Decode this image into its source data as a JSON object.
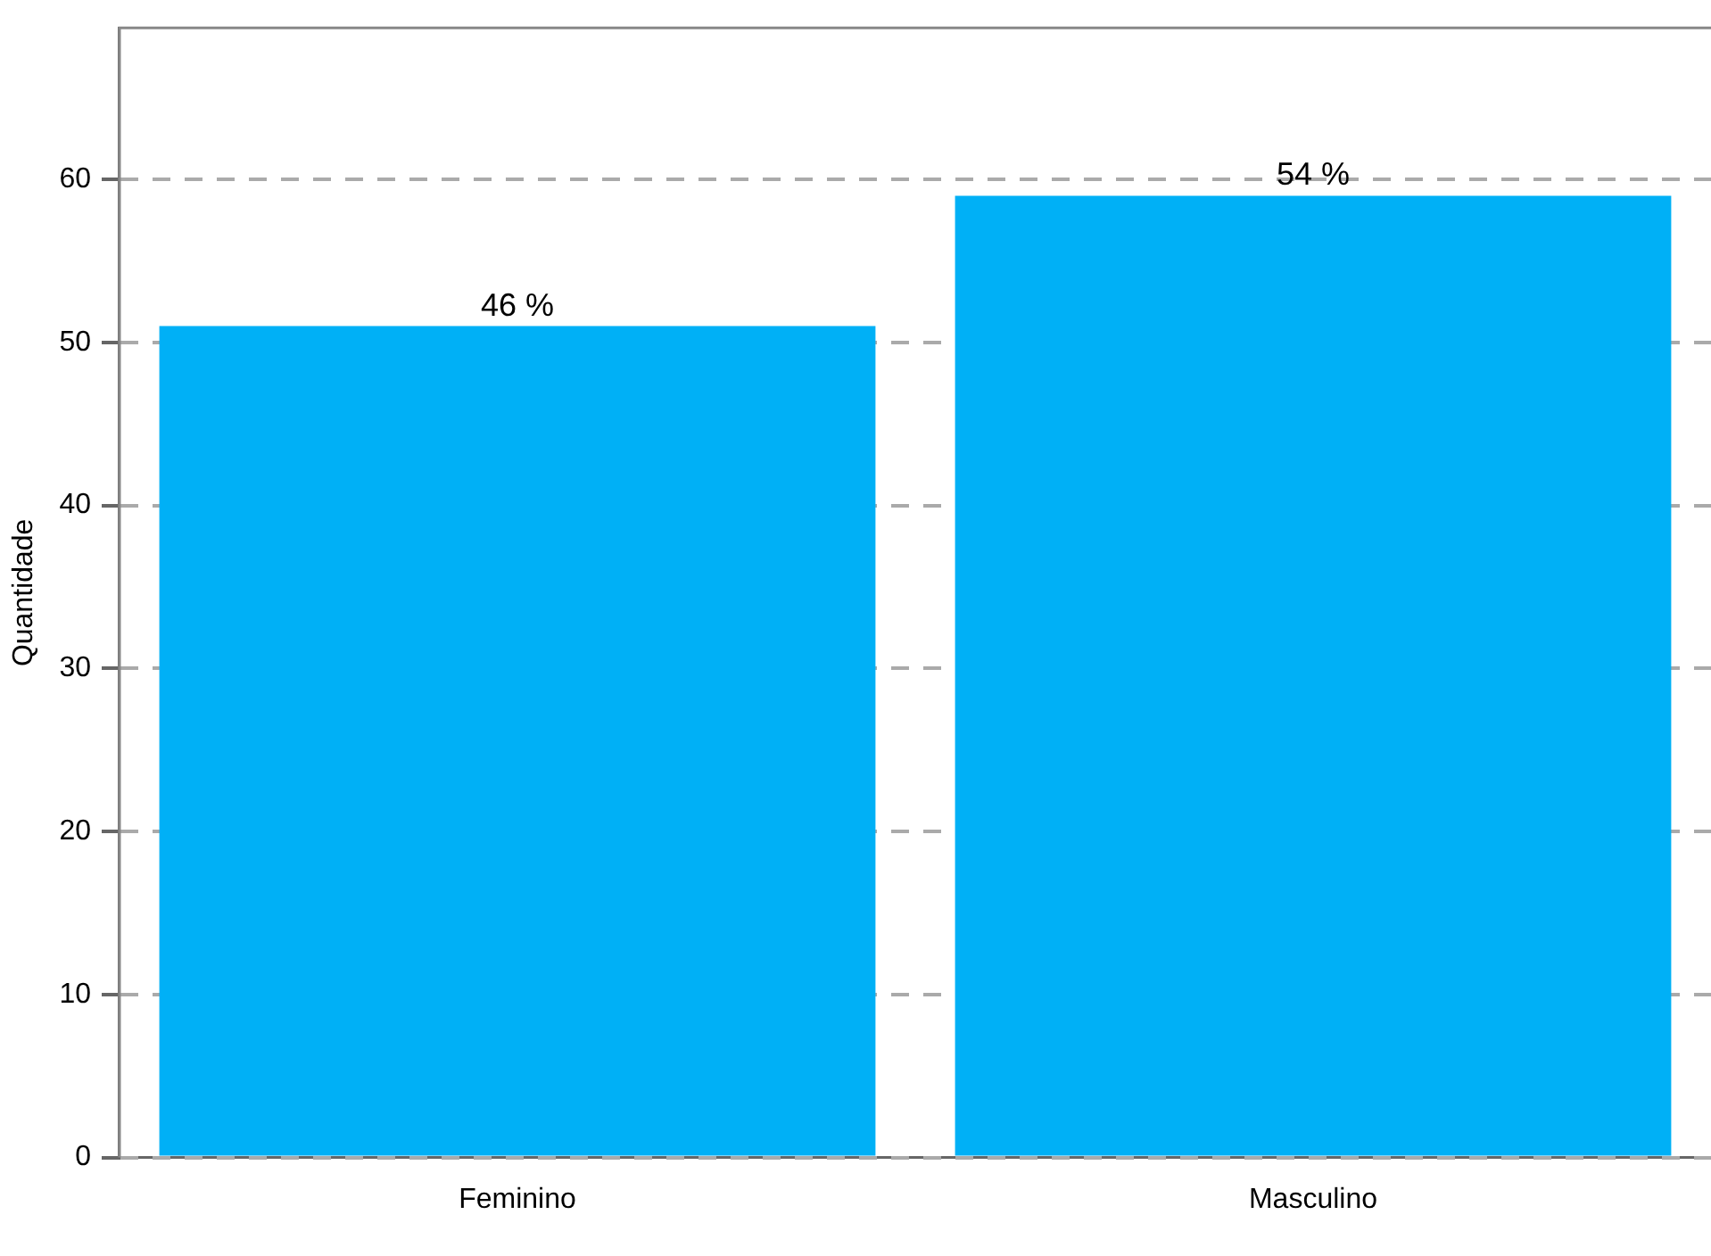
{
  "chart_data": {
    "type": "bar",
    "ylabel": "Quantidade",
    "categories": [
      "Feminino",
      "Masculino"
    ],
    "values": [
      51,
      59
    ],
    "color": "#00b0f6",
    "annotations": [
      {
        "text": "46 %",
        "x": "Feminino",
        "y": 51
      },
      {
        "text": "54 %",
        "x": "Masculino",
        "y": 59
      }
    ],
    "ylim": [
      0,
      69.3
    ],
    "yticks": [
      0,
      10,
      20,
      30,
      40,
      50,
      60
    ],
    "grid": "y"
  }
}
